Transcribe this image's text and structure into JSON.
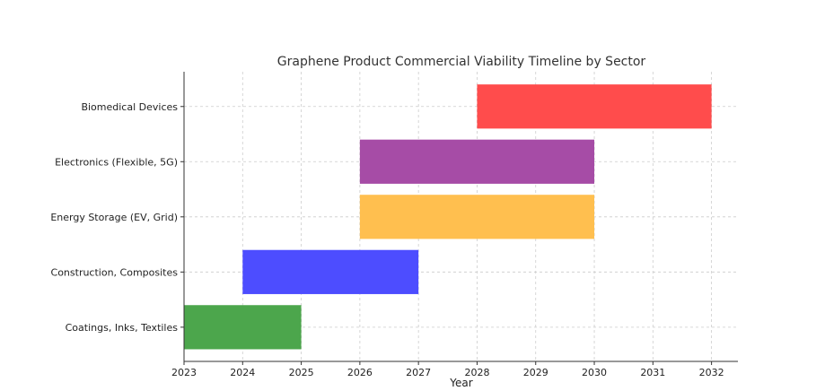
{
  "chart_data": {
    "type": "bar",
    "orientation": "horizontal-gantt",
    "title": "Graphene Product Commercial Viability Timeline by Sector",
    "xlabel": "Year",
    "ylabel": "",
    "xlim": [
      2023,
      2032.45
    ],
    "xticks": [
      2023,
      2024,
      2025,
      2026,
      2027,
      2028,
      2029,
      2030,
      2031,
      2032
    ],
    "grid": true,
    "categories": [
      "Coatings, Inks, Textiles",
      "Construction, Composites",
      "Energy Storage (EV, Grid)",
      "Electronics (Flexible, 5G)",
      "Biomedical Devices"
    ],
    "bars": [
      {
        "category": "Coatings, Inks, Textiles",
        "start": 2023,
        "end": 2025,
        "color": "#4ca64c"
      },
      {
        "category": "Construction, Composites",
        "start": 2024,
        "end": 2027,
        "color": "#4d4dff"
      },
      {
        "category": "Energy Storage (EV, Grid)",
        "start": 2026,
        "end": 2030,
        "color": "#ffbf4f"
      },
      {
        "category": "Electronics (Flexible, 5G)",
        "start": 2026,
        "end": 2030,
        "color": "#a64ca6"
      },
      {
        "category": "Biomedical Devices",
        "start": 2028,
        "end": 2032,
        "color": "#ff4c4c"
      }
    ]
  }
}
